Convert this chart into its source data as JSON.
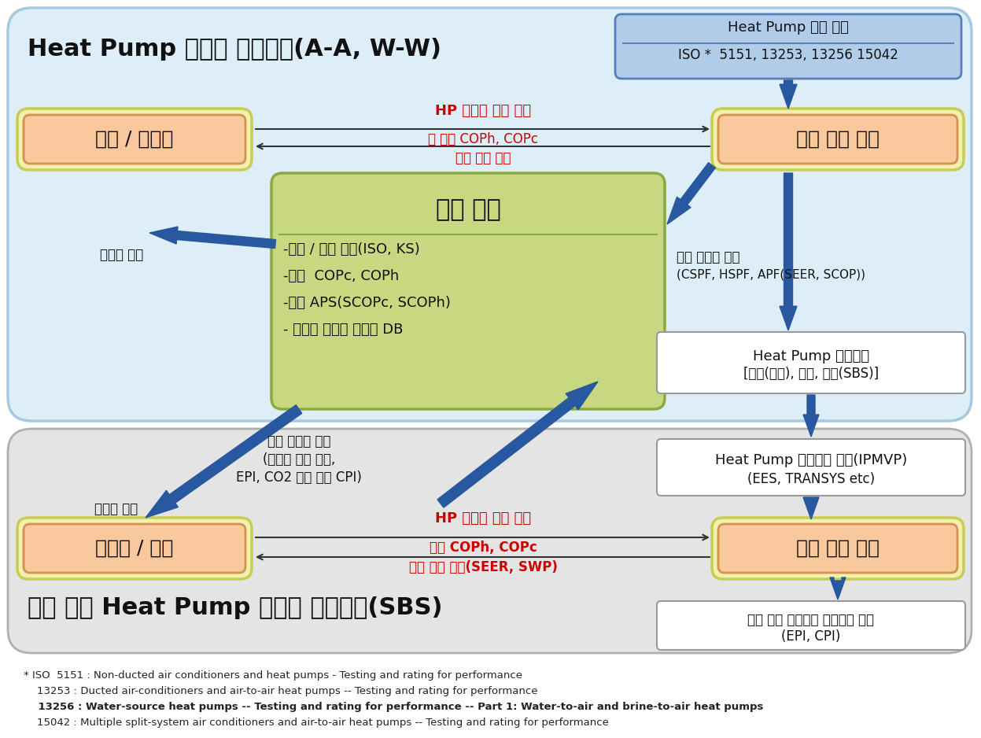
{
  "title_top": "Heat Pump 유니트 인증절차(A-A, W-W)",
  "title_bottom": "건물 통합 Heat Pump 시스템 인증절차(SBS)",
  "hp_std_l1": "Heat Pump 성능 기준",
  "hp_std_l2": "ISO *  5151, 13253, 13256 15042",
  "maker": "제작 / 수입자",
  "designated_top": "지정 인증 기관",
  "cert_body": "인증 기관",
  "cert_bullets": [
    "-등록 / 정보 제공(ISO, KS)",
    "-일점  COPc, COPh",
    "-다점 APS(SCOPc, SCOPh)",
    "- 통계에 근거한 편집과 DB"
  ],
  "arrow_r_top": "HP 유니트 실험 요청",
  "arrow_l_top1": "한 지점 COPh, COPc",
  "arrow_l_top2": "평가 인증 보고",
  "cert_issue": "인증서 발급",
  "perf_data1": "성능 데이터 제공",
  "perf_data2": "(CSPF, HSPF, APF(SEER, SCOP))",
  "eval_data1": "평가 데이터 제공",
  "eval_data2": "(에너지 성능 지수,",
  "eval_data3": "EPI, CO2 배출 지수 CPI)",
  "installer": "설치자 / 건축",
  "designated_bot": "지정 인증 기관",
  "arrow_r_bot": "HP 시스템 평가 요구",
  "arrow_l_bot1": "다점 COPh, COPc",
  "arrow_l_bot2": "평가 인증 보고(SEER, SWP)",
  "sim1": "Heat Pump 모의실험",
  "sim2": "[위치(기후), 건물, 장치(SBS)]",
  "sim_tool1": "Heat Pump 모의실험 수단(IPMVP)",
  "sim_tool2": "(EES, TRANSYS etc)",
  "model1": "요소 기반 시스템의 모의실험 모델",
  "model2": "(EPI, CPI)",
  "fn1": "* ISO  5151 : Non-ducted air conditioners and heat pumps - Testing and rating for performance",
  "fn2": "    13253 : Ducted air-conditioners and air-to-air heat pumps -- Testing and rating for performance",
  "fn3": "    13256 : Water-source heat pumps -- Testing and rating for performance -- Part 1: Water-to-air and brine-to-air heat pumps",
  "fn4": "    15042 : Multiple split-system air conditioners and air-to-air heat pumps -- Testing and rating for performance",
  "bg_top": "#ddeef8",
  "bg_top_edge": "#a8c8e0",
  "bg_bot": "#e4e4e4",
  "bg_bot_edge": "#b0b0b0",
  "orange_face": "#f9c89c",
  "orange_edge": "#d4924e",
  "yellow_face": "#f0f0b0",
  "yellow_edge": "#c8cc50",
  "green_face": "#c8d880",
  "green_edge": "#8aaa40",
  "blue_box_face": "#b0cce8",
  "blue_box_edge": "#5880b8",
  "white_face": "#ffffff",
  "gray_edge": "#999999",
  "arrow_blue": "#2858a0",
  "text_red": "#cc0000",
  "text_dark": "#111111"
}
